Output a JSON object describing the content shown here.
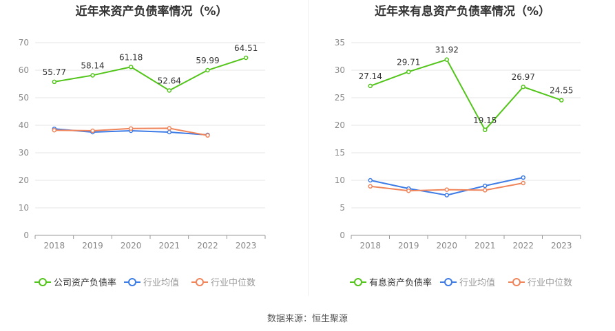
{
  "source": "数据来源：恒生聚源",
  "chart_data": [
    {
      "type": "line",
      "title": "近年来资产负债率情况（%）",
      "categories": [
        "2018",
        "2019",
        "2020",
        "2021",
        "2022",
        "2023"
      ],
      "ylim": [
        0,
        70
      ],
      "yticks": [
        0,
        10,
        20,
        30,
        40,
        50,
        60,
        70
      ],
      "grid": true,
      "legend": "bottom",
      "series": [
        {
          "name": "公司资产负债率",
          "color": "#52c41a",
          "values": [
            55.77,
            58.14,
            61.18,
            52.64,
            59.99,
            64.51
          ],
          "labels": [
            "55.77",
            "58.14",
            "61.18",
            "52.64",
            "59.99",
            "64.51"
          ]
        },
        {
          "name": "行业均值",
          "color": "#3d7be6",
          "values": [
            38.7,
            37.5,
            38.0,
            37.5,
            36.5,
            null
          ]
        },
        {
          "name": "行业中位数",
          "color": "#f0845a",
          "values": [
            38.2,
            38.0,
            38.8,
            38.9,
            36.3,
            null
          ]
        }
      ]
    },
    {
      "type": "line",
      "title": "近年来有息资产负债率情况（%）",
      "categories": [
        "2018",
        "2019",
        "2020",
        "2021",
        "2022",
        "2023"
      ],
      "ylim": [
        0,
        35
      ],
      "yticks": [
        0,
        5,
        10,
        15,
        20,
        25,
        30,
        35
      ],
      "grid": true,
      "legend": "bottom",
      "series": [
        {
          "name": "有息资产负债率",
          "color": "#52c41a",
          "values": [
            27.14,
            29.71,
            31.92,
            19.15,
            26.97,
            24.55
          ],
          "labels": [
            "27.14",
            "29.71",
            "31.92",
            "19.15",
            "26.97",
            "24.55"
          ]
        },
        {
          "name": "行业均值",
          "color": "#3d7be6",
          "values": [
            10.0,
            8.5,
            7.3,
            9.0,
            10.5,
            null
          ]
        },
        {
          "name": "行业中位数",
          "color": "#f0845a",
          "values": [
            8.9,
            8.1,
            8.3,
            8.2,
            9.5,
            null
          ]
        }
      ]
    }
  ]
}
